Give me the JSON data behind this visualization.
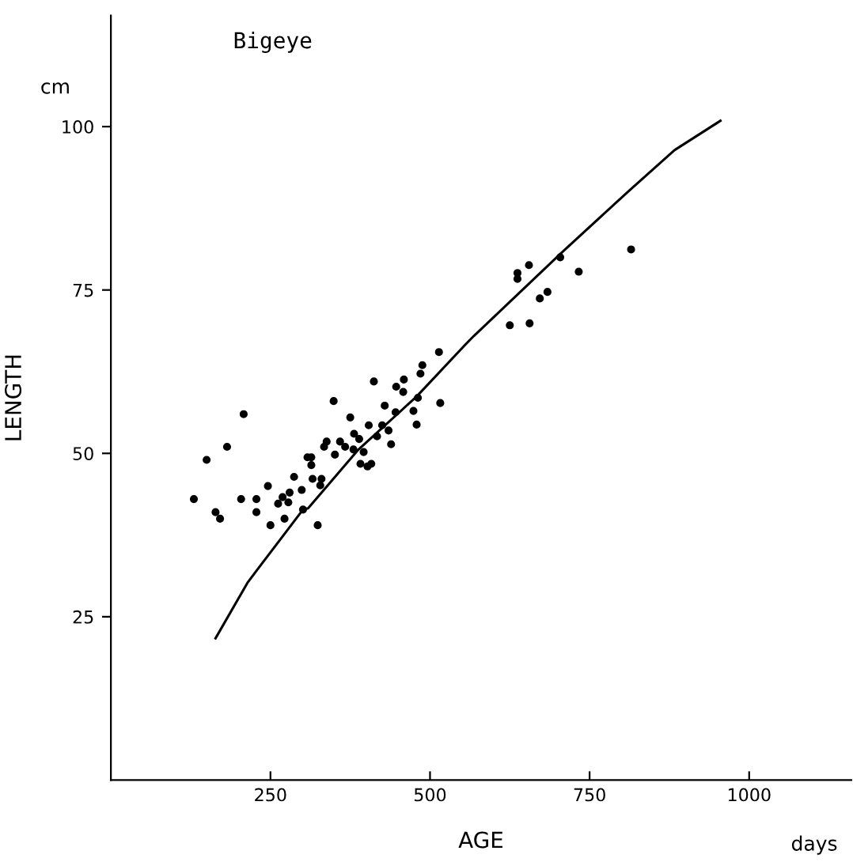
{
  "chart_data": {
    "type": "scatter",
    "title": "Bigeye",
    "xlabel": "AGE",
    "ylabel": "LENGTH",
    "annotations": [
      "cm",
      "days"
    ],
    "xlim": [
      0,
      1160
    ],
    "ylim": [
      0,
      117
    ],
    "xticks": [
      250,
      500,
      750,
      1000
    ],
    "yticks": [
      25,
      50,
      75,
      100
    ],
    "grid": false,
    "legend": false,
    "marker": "circle",
    "series": [
      {
        "color": "#000000",
        "x": [
          130,
          150,
          182,
          208,
          164,
          171,
          204,
          228,
          228,
          246,
          250,
          272,
          324,
          349,
          412,
          402,
          262,
          269,
          280,
          278,
          287,
          299,
          301,
          308,
          314,
          314,
          316,
          328,
          330,
          338,
          334,
          351,
          359,
          367,
          375,
          381,
          380,
          389,
          396,
          404,
          391,
          408,
          417,
          429,
          425,
          435,
          439,
          446,
          447,
          459,
          458,
          474,
          479,
          481,
          485,
          488,
          514,
          516,
          625,
          656,
          672,
          684,
          637,
          637,
          655,
          704,
          733,
          815
        ],
        "values": [
          43,
          49,
          51,
          56,
          41,
          40,
          43,
          43,
          41,
          45,
          39,
          40,
          39,
          58,
          61,
          48,
          42.3,
          43.3,
          44,
          42.5,
          46.4,
          44.4,
          41.4,
          49.4,
          49.4,
          48.2,
          46.1,
          45.1,
          46.1,
          51.8,
          51,
          49.8,
          51.8,
          51,
          55.5,
          53,
          50.6,
          52.2,
          50.2,
          54.3,
          48.4,
          48.4,
          52.6,
          57.3,
          54.3,
          53.5,
          51.4,
          56.3,
          60.2,
          61.3,
          59.4,
          56.5,
          54.4,
          58.5,
          62.2,
          63.5,
          65.5,
          57.7,
          69.6,
          69.9,
          73.7,
          74.7,
          76.7,
          77.6,
          78.8,
          80,
          77.8,
          81.2
        ]
      },
      {
        "type": "line",
        "color": "#000000",
        "marker": "none",
        "line_style": "solid",
        "x": [
          164,
          214,
          227,
          301,
          309,
          388,
          479,
          553,
          569,
          705,
          813,
          883,
          955
        ],
        "values": [
          21.7,
          30.2,
          31.9,
          41.4,
          41.6,
          50.6,
          58.7,
          66.4,
          68,
          80.6,
          90.3,
          96.4,
          100.9
        ]
      }
    ]
  }
}
